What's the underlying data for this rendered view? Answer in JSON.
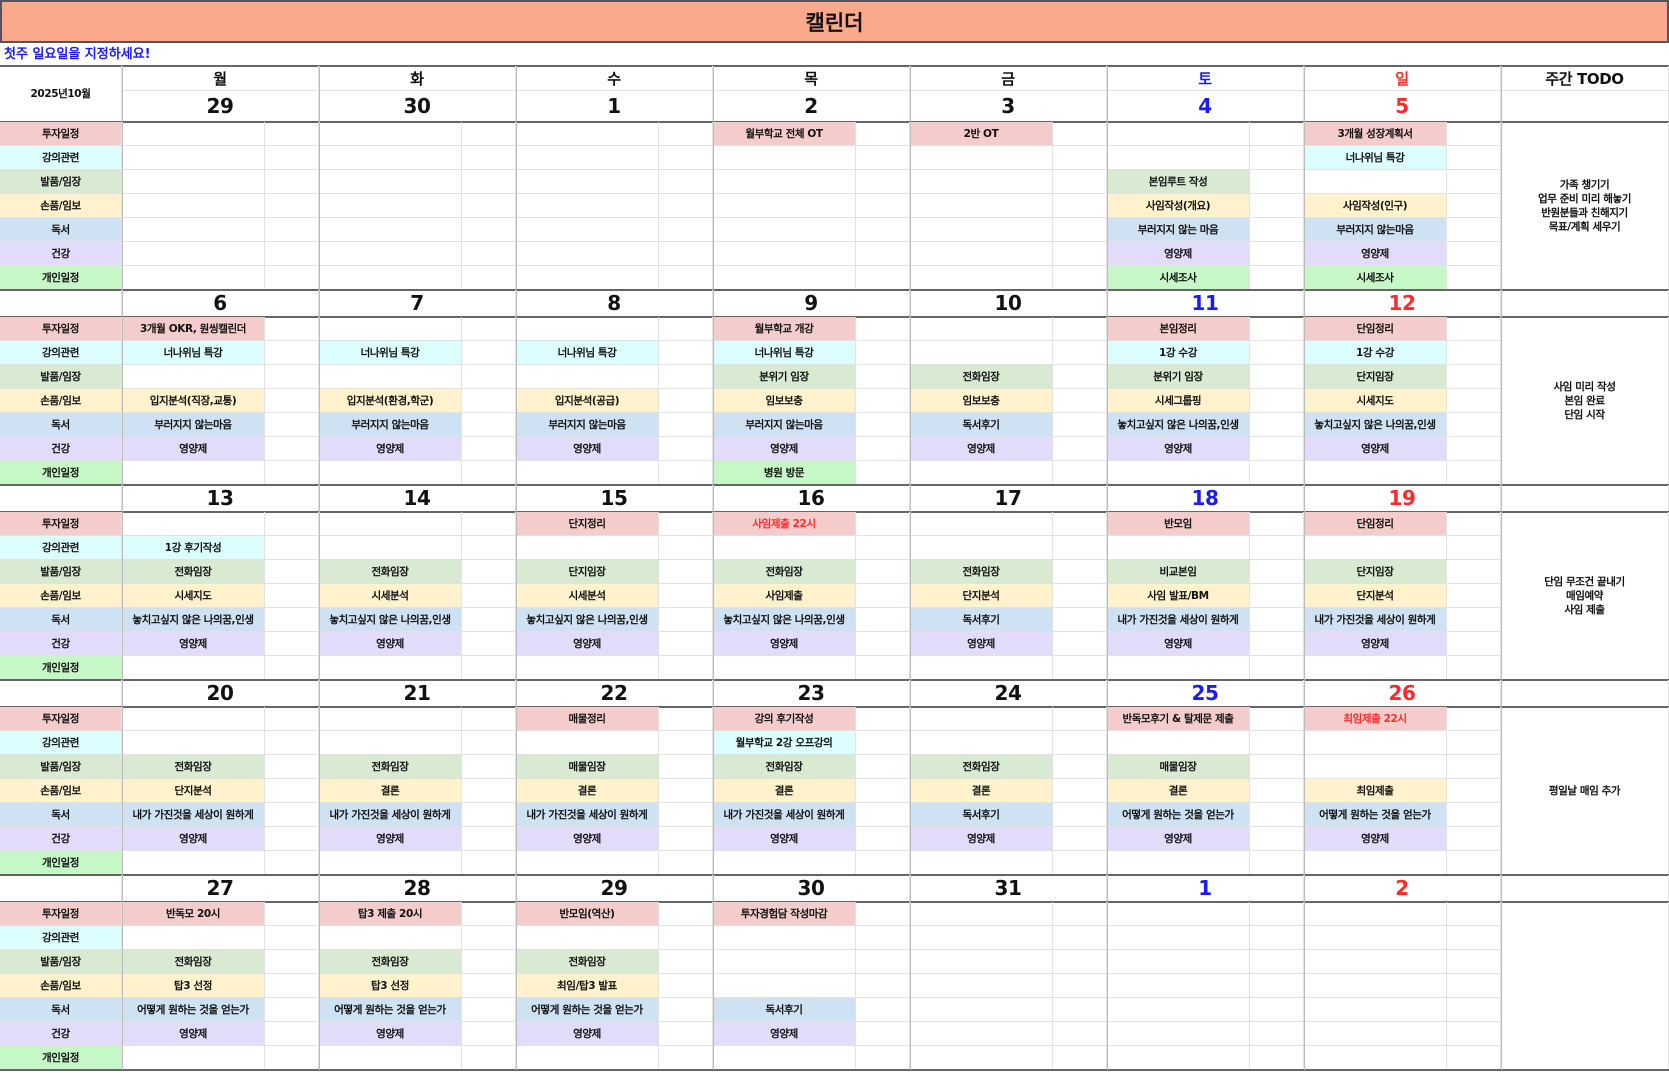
{
  "title": "캘린더",
  "subtitle": "첫주 일요일을 지정하세요!",
  "month_label": "2025년10월",
  "weekdays": [
    "월",
    "화",
    "수",
    "목",
    "금",
    "토",
    "일"
  ],
  "todo_header": "주간 TODO",
  "colors": {
    "title_bg": "#fba98d",
    "saturday": "#1a1aff",
    "sunday": "#ff2a2a",
    "categories": [
      "#f4cccc",
      "#dcfeff",
      "#d9ead3",
      "#fff2cc",
      "#cfe2f3",
      "#e2dcfa",
      "#c6f7c6"
    ]
  },
  "categories": [
    "투자일정",
    "강의관련",
    "발품/임장",
    "손품/임보",
    "독서",
    "건강",
    "개인일정"
  ],
  "weeks": [
    {
      "dates": [
        "29",
        "30",
        "1",
        "2",
        "3",
        "4",
        "5"
      ],
      "rows": [
        [
          "",
          "",
          "",
          "월부학교 전체 OT",
          "2반 OT",
          "",
          "3개월 성장계획서"
        ],
        [
          "",
          "",
          "",
          "",
          "",
          "",
          "너나위님 특강"
        ],
        [
          "",
          "",
          "",
          "",
          "",
          "본임루트 작성",
          ""
        ],
        [
          "",
          "",
          "",
          "",
          "",
          "사임작성(개요)",
          "사임작성(인구)"
        ],
        [
          "",
          "",
          "",
          "",
          "",
          "부러지지 않는 마음",
          "부러지지 않는마음"
        ],
        [
          "",
          "",
          "",
          "",
          "",
          "영양제",
          "영양제"
        ],
        [
          "",
          "",
          "",
          "",
          "",
          "시세조사",
          "시세조사"
        ]
      ],
      "red_entries": [],
      "todo": [
        "가족 챙기기",
        "업무 준비 미리 해놓기",
        "반원분들과 친해지기",
        "목표/계획 세우기"
      ]
    },
    {
      "dates": [
        "6",
        "7",
        "8",
        "9",
        "10",
        "11",
        "12"
      ],
      "rows": [
        [
          "3개월 OKR, 원씽캘린더",
          "",
          "",
          "월부학교 개강",
          "",
          "본임정리",
          "단임정리"
        ],
        [
          "너나위님 특강",
          "너나위님 특강",
          "너나위님 특강",
          "너나위님 특강",
          "",
          "1강 수강",
          "1강 수강"
        ],
        [
          "",
          "",
          "",
          "분위기 임장",
          "전화임장",
          "분위기 임장",
          "단지임장"
        ],
        [
          "입지분석(직장,교통)",
          "입지분석(환경,학군)",
          "입지분석(공급)",
          "임보보충",
          "임보보충",
          "시세그룹핑",
          "시세지도"
        ],
        [
          "부러지지 않는마음",
          "부러지지 않는마음",
          "부러지지 않는마음",
          "부러지지 않는마음",
          "독서후기",
          "놓치고싶지 않은 나의꿈,인생",
          "놓치고싶지 않은 나의꿈,인생"
        ],
        [
          "영양제",
          "영양제",
          "영양제",
          "영양제",
          "영양제",
          "영양제",
          "영양제"
        ],
        [
          "",
          "",
          "",
          "병원 방문",
          "",
          "",
          ""
        ]
      ],
      "red_entries": [],
      "todo": [
        "사임 미리 작성",
        "본임 완료",
        "단임 시작"
      ]
    },
    {
      "dates": [
        "13",
        "14",
        "15",
        "16",
        "17",
        "18",
        "19"
      ],
      "rows": [
        [
          "",
          "",
          "단지정리",
          "사임제출 22시",
          "",
          "반모임",
          "단임정리"
        ],
        [
          "1강 후기작성",
          "",
          "",
          "",
          "",
          "",
          ""
        ],
        [
          "전화임장",
          "전화임장",
          "단지임장",
          "전화임장",
          "전화임장",
          "비교본임",
          "단지임장"
        ],
        [
          "시세지도",
          "시세분석",
          "시세분석",
          "사임제출",
          "단지분석",
          "사임 발표/BM",
          "단지분석"
        ],
        [
          "놓치고싶지 않은 나의꿈,인생",
          "놓치고싶지 않은 나의꿈,인생",
          "놓치고싶지 않은 나의꿈,인생",
          "놓치고싶지 않은 나의꿈,인생",
          "독서후기",
          "내가 가진것을 세상이 원하게",
          "내가 가진것을 세상이 원하게"
        ],
        [
          "영양제",
          "영양제",
          "영양제",
          "영양제",
          "영양제",
          "영양제",
          "영양제"
        ],
        [
          "",
          "",
          "",
          "",
          "",
          "",
          ""
        ]
      ],
      "red_entries": [
        "0-3"
      ],
      "todo": [
        "단임 무조건 끝내기",
        "매임예약",
        "사임 제출"
      ]
    },
    {
      "dates": [
        "20",
        "21",
        "22",
        "23",
        "24",
        "25",
        "26"
      ],
      "rows": [
        [
          "",
          "",
          "매물정리",
          "강의 후기작성",
          "",
          "반독모후기 & 탈제문 제출",
          "최임제출 22시"
        ],
        [
          "",
          "",
          "",
          "월부학교 2강 오프강의",
          "",
          "",
          ""
        ],
        [
          "전화임장",
          "전화임장",
          "매물임장",
          "전화임장",
          "전화임장",
          "매물임장",
          ""
        ],
        [
          "단지분석",
          "결론",
          "결론",
          "결론",
          "결론",
          "결론",
          "최임제출"
        ],
        [
          "내가 가진것을 세상이 원하게",
          "내가 가진것을 세상이 원하게",
          "내가 가진것을 세상이 원하게",
          "내가 가진것을 세상이 원하게",
          "독서후기",
          "어떻게 원하는 것을 얻는가",
          "어떻게 원하는 것을 얻는가"
        ],
        [
          "영양제",
          "영양제",
          "영양제",
          "영양제",
          "영양제",
          "영양제",
          "영양제"
        ],
        [
          "",
          "",
          "",
          "",
          "",
          "",
          ""
        ]
      ],
      "red_entries": [
        "0-6"
      ],
      "todo": [
        "평일날 매임 추가"
      ]
    },
    {
      "dates": [
        "27",
        "28",
        "29",
        "30",
        "31",
        "1",
        "2"
      ],
      "rows": [
        [
          "반독모 20시",
          "탑3 제출 20시",
          "반모임(역산)",
          "투자경험담 작성마감",
          "",
          "",
          ""
        ],
        [
          "",
          "",
          "",
          "",
          "",
          "",
          ""
        ],
        [
          "전화임장",
          "전화임장",
          "전화임장",
          "",
          "",
          "",
          ""
        ],
        [
          "탑3 선정",
          "탑3 선정",
          "최임/탑3 발표",
          "",
          "",
          "",
          ""
        ],
        [
          "어떻게 원하는 것을 얻는가",
          "어떻게 원하는 것을 얻는가",
          "어떻게 원하는 것을 얻는가",
          "독서후기",
          "",
          "",
          ""
        ],
        [
          "영양제",
          "영양제",
          "영양제",
          "영양제",
          "",
          "",
          ""
        ],
        [
          "",
          "",
          "",
          "",
          "",
          "",
          ""
        ]
      ],
      "red_entries": [],
      "todo": []
    }
  ]
}
